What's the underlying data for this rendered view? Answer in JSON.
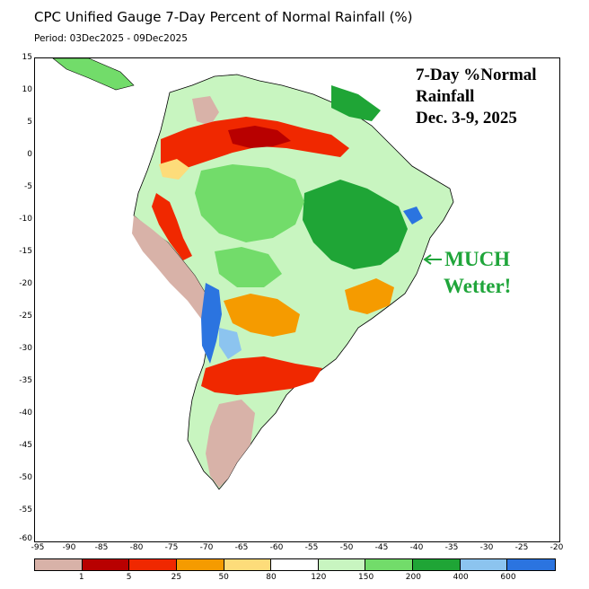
{
  "title": "CPC Unified Gauge 7-Day Percent of Normal Rainfall (%)",
  "period": "Period: 03Dec2025 - 09Dec2025",
  "annotation": {
    "line1": "7-Day %Normal",
    "line2": "Rainfall",
    "line3": "Dec. 3-9, 2025",
    "wetter_line1": "MUCH",
    "wetter_line2": "Wetter!",
    "wetter_color": "#1fa53a"
  },
  "y_axis_labels": [
    "15",
    "10",
    "5",
    "0",
    "-5",
    "-10",
    "-15",
    "-20",
    "-25",
    "-30",
    "-35",
    "-40",
    "-45",
    "-50",
    "-55",
    "-60"
  ],
  "x_axis_labels": [
    "-95",
    "-90",
    "-85",
    "-80",
    "-75",
    "-70",
    "-65",
    "-60",
    "-55",
    "-50",
    "-45",
    "-40",
    "-35",
    "-30",
    "-25",
    "-20"
  ],
  "legend": {
    "colors": [
      "#d8b2a8",
      "#b80000",
      "#f02800",
      "#f59b00",
      "#fddc7a",
      "#ffffff",
      "#c8f5c0",
      "#72dc6a",
      "#1fa536",
      "#8cc4ef",
      "#2b74e0"
    ],
    "labels": [
      "1",
      "5",
      "25",
      "50",
      "80",
      "120",
      "150",
      "200",
      "400",
      "600"
    ]
  }
}
